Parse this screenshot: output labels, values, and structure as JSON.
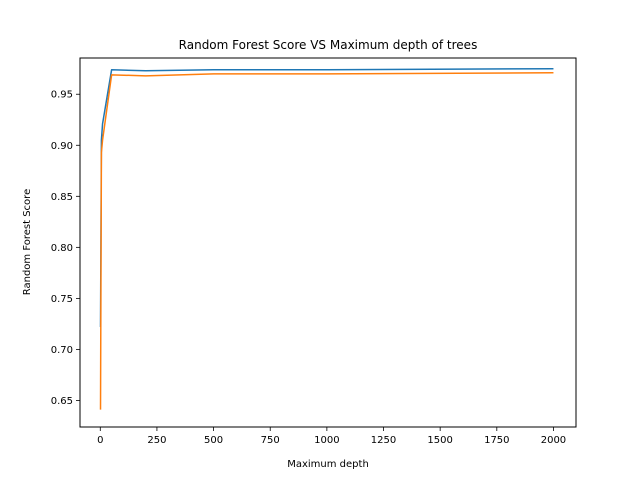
{
  "chart_data": {
    "type": "line",
    "title": "Random Forest Score VS Maximum depth of trees",
    "xlabel": "Maximum depth",
    "ylabel": "Random Forest Score",
    "xlim": [
      -89.5,
      2099.5
    ],
    "ylim": [
      0.624,
      0.9855
    ],
    "xticks": [
      0,
      250,
      500,
      750,
      1000,
      1250,
      1500,
      1750,
      2000
    ],
    "yticks": [
      0.65,
      0.7,
      0.75,
      0.8,
      0.85,
      0.9,
      0.95
    ],
    "grid": false,
    "legend": "none",
    "series": [
      {
        "color": "#1f77b4",
        "x": [
          1,
          5,
          10,
          50,
          200,
          500,
          1000,
          2000
        ],
        "y": [
          0.722,
          0.905,
          0.921,
          0.974,
          0.973,
          0.974,
          0.974,
          0.975
        ]
      },
      {
        "color": "#ff7f0e",
        "x": [
          1,
          5,
          10,
          50,
          200,
          500,
          1000,
          2000
        ],
        "y": [
          0.641,
          0.893,
          0.905,
          0.969,
          0.968,
          0.97,
          0.97,
          0.971
        ]
      }
    ]
  }
}
